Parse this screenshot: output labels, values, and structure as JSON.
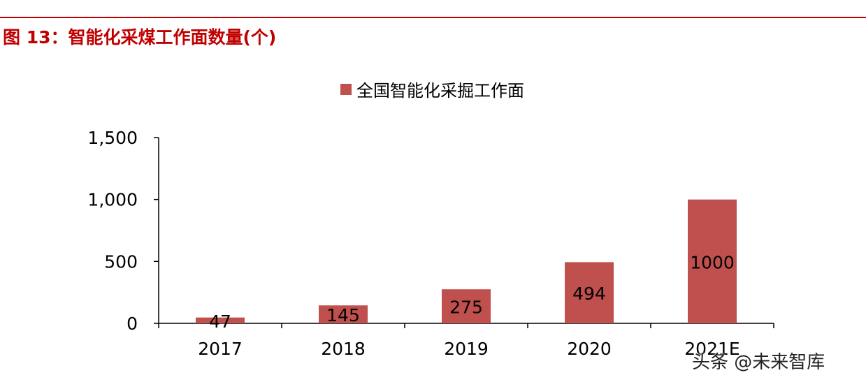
{
  "figure_title": "图 13：智能化采煤工作面数量(个)",
  "watermark": "头条 @未来智库",
  "colors": {
    "title": "#c00000",
    "bar": "#c0504d",
    "axis": "#000000",
    "text": "#000000"
  },
  "chart_data": {
    "type": "bar",
    "title": "",
    "xlabel": "",
    "ylabel": "",
    "categories": [
      "2017",
      "2018",
      "2019",
      "2020",
      "2021E"
    ],
    "series": [
      {
        "name": "全国智能化采掘工作面",
        "values": [
          47,
          145,
          275,
          494,
          1000
        ]
      }
    ],
    "data_labels": [
      "47",
      "145",
      "275",
      "494",
      "1000"
    ],
    "ylim": [
      0,
      1500
    ],
    "yticks": [
      0,
      500,
      1000,
      1500
    ],
    "ytick_labels": [
      "0",
      "500",
      "1,000",
      "1,500"
    ],
    "legend_position": "top-center",
    "grid": false
  }
}
